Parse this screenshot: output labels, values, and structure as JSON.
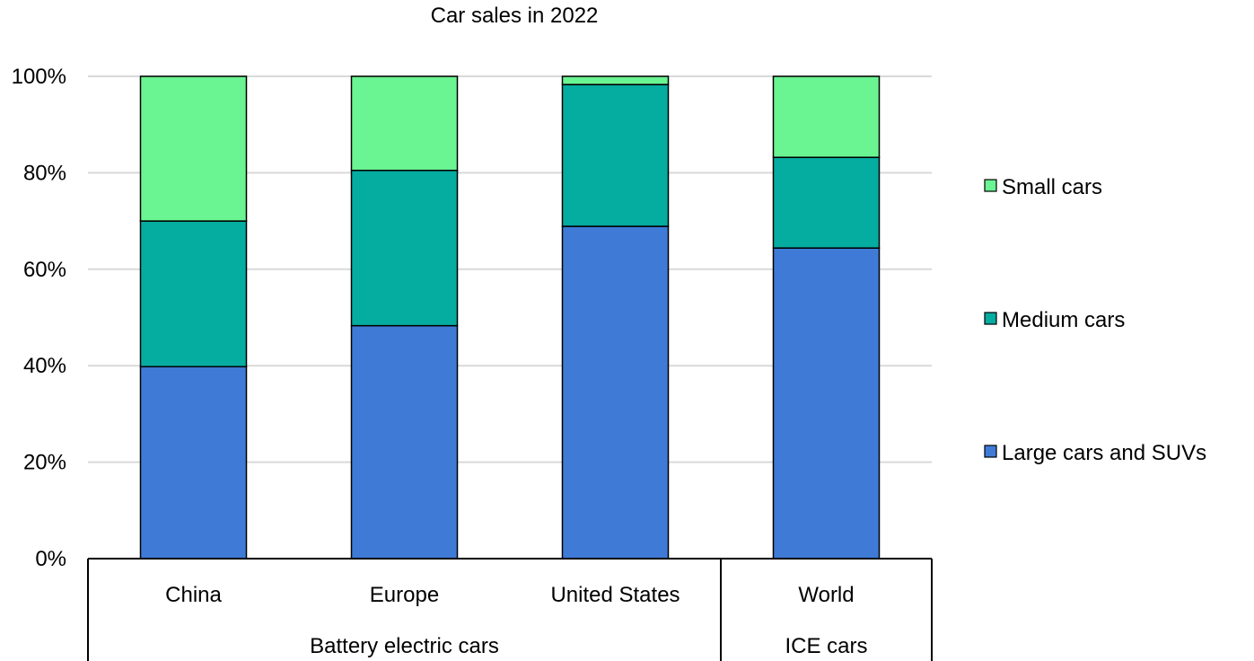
{
  "chart_data": {
    "type": "bar",
    "stacked": true,
    "percent_stacked": true,
    "title": "Car sales in 2022",
    "xlabel": "",
    "ylabel": "",
    "ylim": [
      0,
      100
    ],
    "y_ticks": [
      "0%",
      "20%",
      "40%",
      "60%",
      "80%",
      "100%"
    ],
    "y_tick_values": [
      0,
      20,
      40,
      60,
      80,
      100
    ],
    "grid": true,
    "legend_position": "right",
    "categories": [
      "China",
      "Europe",
      "United States",
      "World"
    ],
    "groups": [
      {
        "label": "Battery electric cars",
        "categories": [
          "China",
          "Europe",
          "United States"
        ]
      },
      {
        "label": "ICE cars",
        "categories": [
          "World"
        ]
      }
    ],
    "series": [
      {
        "name": "Large cars and SUVs",
        "color": "#3f7bd6",
        "values": [
          39.8,
          48.3,
          68.9,
          64.4
        ]
      },
      {
        "name": "Medium cars",
        "color": "#05aca0",
        "values": [
          30.2,
          32.2,
          29.4,
          18.8
        ]
      },
      {
        "name": "Small cars",
        "color": "#6af492",
        "values": [
          30.0,
          19.5,
          1.7,
          16.8
        ]
      }
    ],
    "legend_order": [
      "Small cars",
      "Medium cars",
      "Large cars and SUVs"
    ]
  }
}
